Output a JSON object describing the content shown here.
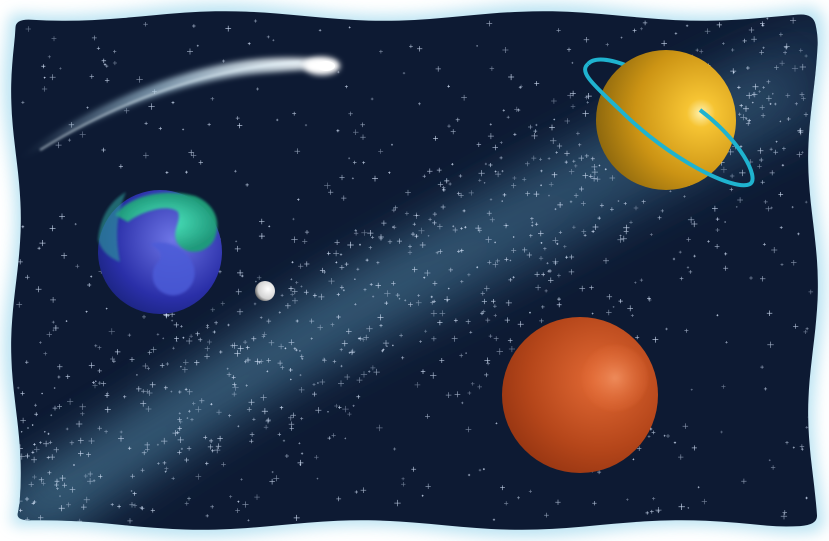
{
  "scene": {
    "colors": {
      "space": "#0d1a33",
      "glow": "#a8dcef",
      "milky_way": "#5f92ad",
      "star": "#dbe9ff",
      "comet": "#e9f8ff",
      "earth_ocean": "#1d2f99",
      "earth_land": "#32d7a8",
      "saturn": "#d69b1e",
      "saturn_ring": "#1fb3cf",
      "mars": "#b5471b",
      "moon": "#e7e7e7"
    }
  }
}
